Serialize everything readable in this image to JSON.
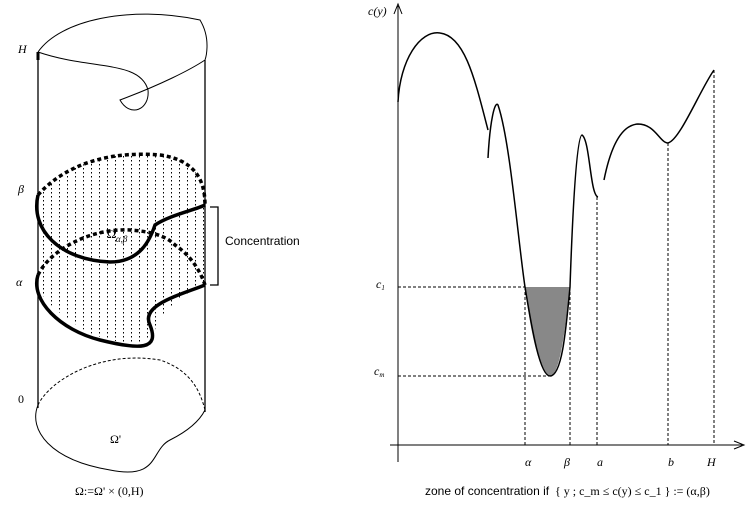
{
  "left": {
    "label_H": "H",
    "label_beta": "β",
    "label_alpha": "α",
    "label_zero": "0",
    "region_label": {
      "base": "Ω",
      "sub": "α,β"
    },
    "bracket_label": "Concentration",
    "base_label": "Ω'",
    "caption": "Ω:=Ω' × (0,H)"
  },
  "right": {
    "axis_label": "c(y)",
    "level_c1": {
      "base": "c",
      "sub": "1"
    },
    "level_cm": {
      "base": "c",
      "sub": "m"
    },
    "x_labels": [
      "α",
      "β",
      "a",
      "b",
      "H"
    ],
    "caption_text": "zone of concentration if",
    "caption_formula": "{ y  ; c_m ≤ c(y) ≤ c_1 } := (α,β)"
  }
}
